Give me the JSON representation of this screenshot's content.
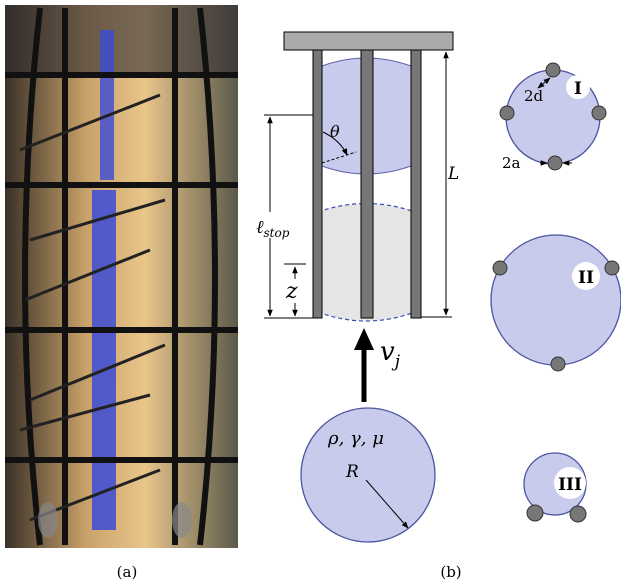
{
  "panel_a": {
    "caption": "(a)"
  },
  "panel_b": {
    "caption": "(b)",
    "labels": {
      "theta": "θ",
      "l_stop": {
        "main": "ℓ",
        "sub": "stop"
      },
      "z": "z",
      "L": "L",
      "v_j": {
        "main": "v",
        "sub": "j"
      },
      "properties": "ρ, γ, μ",
      "R": "R",
      "d": "2d",
      "a": "2a"
    },
    "configurations": [
      "I",
      "II",
      "III"
    ]
  }
}
